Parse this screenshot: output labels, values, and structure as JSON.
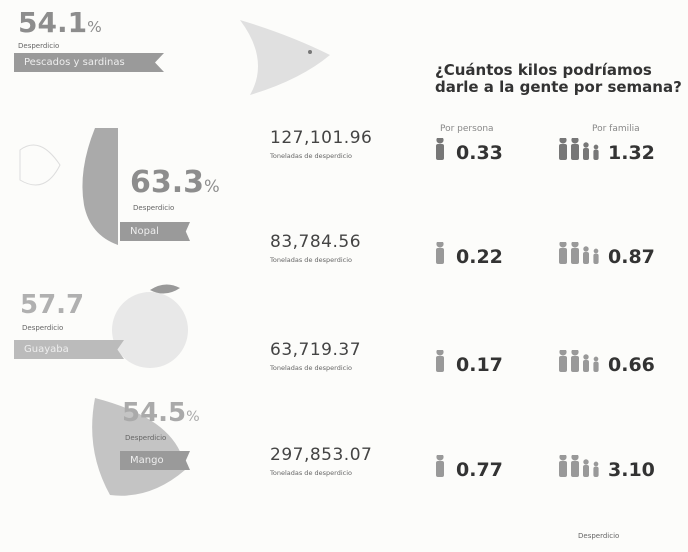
{
  "question": {
    "line1": "¿Cuántos kilos podríamos",
    "line2": "darle a la gente por semana?"
  },
  "columns": {
    "person": "Por persona",
    "family": "Por familia"
  },
  "foods": [
    {
      "percent": "54.1",
      "unit": "%",
      "label": "Desperdicio",
      "name": "Pescados y sardinas"
    },
    {
      "percent": "63.3",
      "unit": "%",
      "label": "Desperdicio",
      "name": "Nopal"
    },
    {
      "percent": "57.7",
      "label": "Desperdicio",
      "name": "Guayaba"
    },
    {
      "percent": "54.5",
      "unit": "%",
      "label": "Desperdicio",
      "name": "Mango"
    }
  ],
  "rows": [
    {
      "tons": "127,101.96",
      "tons_label": "Toneladas de desperdicio",
      "person": "0.33",
      "family": "1.32"
    },
    {
      "tons": "83,784.56",
      "tons_label": "Toneladas de desperdicio",
      "person": "0.22",
      "family": "0.87"
    },
    {
      "tons": "63,719.37",
      "tons_label": "Toneladas de desperdicio",
      "person": "0.17",
      "family": "0.66"
    },
    {
      "tons": "297,853.07",
      "tons_label": "Toneladas de desperdicio",
      "person": "0.77",
      "family": "3.10"
    }
  ],
  "footer": "Desperdicio"
}
